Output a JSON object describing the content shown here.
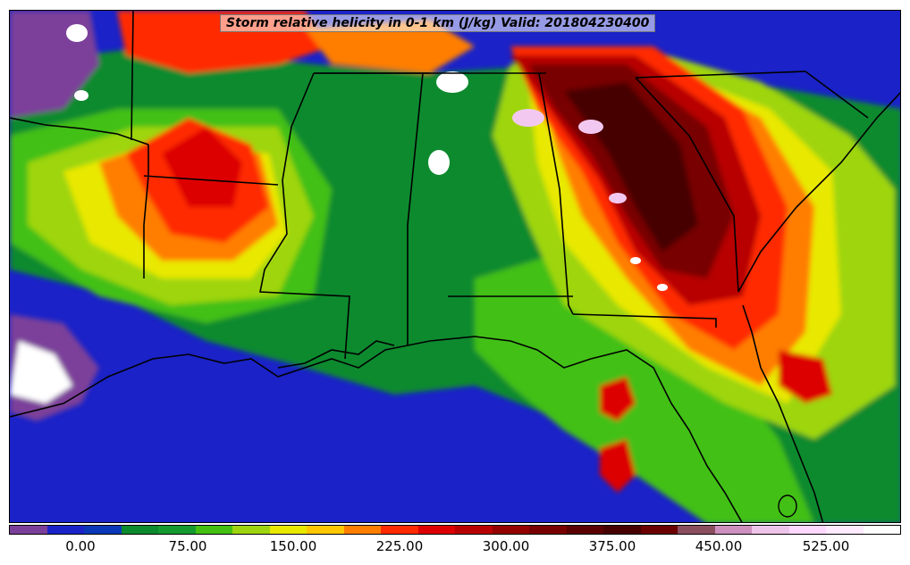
{
  "map": {
    "title": "Storm relative helicity in 0-1 km (J/kg) Valid: 201804230400",
    "variable": "Storm relative helicity 0-1 km",
    "units": "J/kg",
    "valid_time": "201804230400",
    "region": "Southeastern United States",
    "basemap_features": [
      "state boundaries",
      "coastlines",
      "lakes"
    ]
  },
  "colorbar": {
    "colors": [
      "#7b3f9a",
      "#1a22c8",
      "#0a37b8",
      "#0b8a2e",
      "#159a30",
      "#43c012",
      "#9ed510",
      "#e8e800",
      "#ffc800",
      "#ff7e00",
      "#ff2a00",
      "#dd0000",
      "#b80000",
      "#950000",
      "#780000",
      "#5a0000",
      "#470000",
      "#6b0000",
      "#8b4e5e",
      "#cc8fbe",
      "#eec5ea",
      "#ffd8ff",
      "#ffeaff",
      "#ffffff"
    ],
    "tick_labels": [
      "0.00",
      "75.00",
      "150.00",
      "225.00",
      "300.00",
      "375.00",
      "450.00",
      "525.00"
    ]
  }
}
